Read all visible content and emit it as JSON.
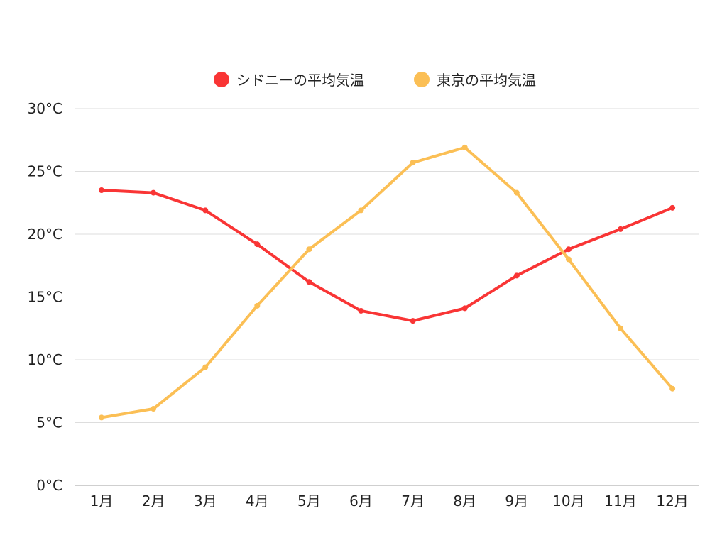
{
  "chart_data": {
    "type": "line",
    "categories": [
      "1月",
      "2月",
      "3月",
      "4月",
      "5月",
      "6月",
      "7月",
      "8月",
      "9月",
      "10月",
      "11月",
      "12月"
    ],
    "series": [
      {
        "name": "シドニーの平均気温",
        "color": "#f93535",
        "values": [
          23.5,
          23.3,
          21.9,
          19.2,
          16.2,
          13.9,
          13.1,
          14.1,
          16.7,
          18.8,
          20.4,
          22.1
        ]
      },
      {
        "name": "東京の平均気温",
        "color": "#fbbf55",
        "values": [
          5.4,
          6.1,
          9.4,
          14.3,
          18.8,
          21.9,
          25.7,
          26.9,
          23.3,
          18.0,
          12.5,
          7.7
        ]
      }
    ],
    "y_ticks": [
      "0°C",
      "5°C",
      "10°C",
      "15°C",
      "20°C",
      "25°C",
      "30°C"
    ],
    "ylim": [
      0,
      30
    ],
    "y_tick_step": 5,
    "grid": true,
    "legend_position": "top-center"
  }
}
